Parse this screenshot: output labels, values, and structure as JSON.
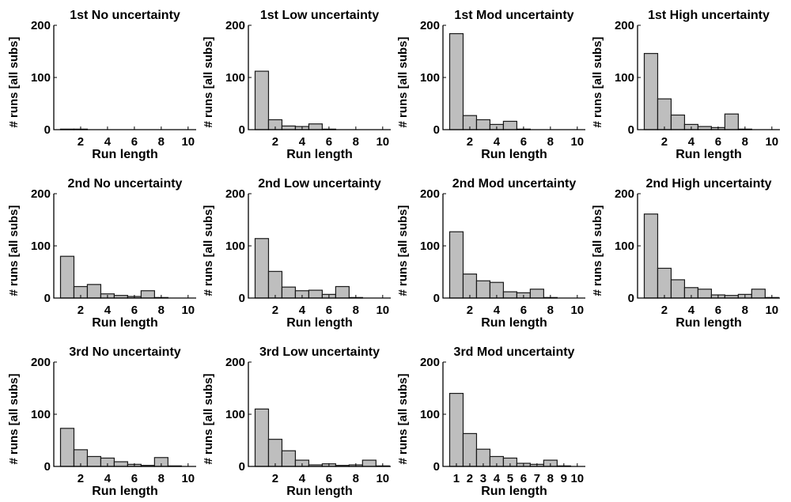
{
  "figure": {
    "background": "#ffffff",
    "bar_fill": "#bebebe",
    "bar_stroke": "#1a1a1a"
  },
  "chart_data": [
    {
      "type": "bar",
      "title": "1st No uncertainty",
      "xlabel": "Run length",
      "ylabel": "# runs [all subs]",
      "xlim": [
        0,
        10.6
      ],
      "ylim": [
        0,
        200
      ],
      "xticks": [
        2,
        4,
        6,
        8,
        10
      ],
      "yticks": [
        0,
        100,
        200
      ],
      "categories": [
        1,
        2,
        3,
        4,
        5,
        6,
        7,
        8,
        9,
        10
      ],
      "values": [
        1,
        1,
        0,
        0,
        0,
        0,
        0,
        0,
        0,
        0
      ]
    },
    {
      "type": "bar",
      "title": "1st Low uncertainty",
      "xlabel": "Run length",
      "ylabel": "# runs [all subs]",
      "xlim": [
        0,
        10.6
      ],
      "ylim": [
        0,
        200
      ],
      "xticks": [
        2,
        4,
        6,
        8,
        10
      ],
      "yticks": [
        0,
        100,
        200
      ],
      "categories": [
        1,
        2,
        3,
        4,
        5,
        6,
        7,
        8,
        9,
        10
      ],
      "values": [
        112,
        19,
        7,
        6,
        11,
        1,
        0,
        0,
        0,
        0
      ]
    },
    {
      "type": "bar",
      "title": "1st Mod uncertainty",
      "xlabel": "Run length",
      "ylabel": "# runs [all subs]",
      "xlim": [
        0,
        10.6
      ],
      "ylim": [
        0,
        200
      ],
      "xticks": [
        2,
        4,
        6,
        8,
        10
      ],
      "yticks": [
        0,
        100,
        200
      ],
      "categories": [
        1,
        2,
        3,
        4,
        5,
        6,
        7,
        8,
        9,
        10
      ],
      "values": [
        184,
        27,
        19,
        10,
        16,
        1,
        0,
        0,
        0,
        0
      ]
    },
    {
      "type": "bar",
      "title": "1st High uncertainty",
      "xlabel": "Run length",
      "ylabel": "# runs [all subs]",
      "xlim": [
        0,
        10.6
      ],
      "ylim": [
        0,
        200
      ],
      "xticks": [
        2,
        4,
        6,
        8,
        10
      ],
      "yticks": [
        0,
        100,
        200
      ],
      "categories": [
        1,
        2,
        3,
        4,
        5,
        6,
        7,
        8,
        9,
        10
      ],
      "values": [
        146,
        59,
        28,
        10,
        6,
        4,
        30,
        1,
        0,
        0
      ]
    },
    {
      "type": "bar",
      "title": "2nd No uncertainty",
      "xlabel": "Run length",
      "ylabel": "# runs [all subs]",
      "xlim": [
        0,
        10.6
      ],
      "ylim": [
        0,
        200
      ],
      "xticks": [
        2,
        4,
        6,
        8,
        10
      ],
      "yticks": [
        0,
        100,
        200
      ],
      "categories": [
        1,
        2,
        3,
        4,
        5,
        6,
        7,
        8,
        9,
        10
      ],
      "values": [
        80,
        22,
        26,
        8,
        5,
        3,
        14,
        1,
        0,
        0
      ]
    },
    {
      "type": "bar",
      "title": "2nd Low uncertainty",
      "xlabel": "Run length",
      "ylabel": "# runs [all subs]",
      "xlim": [
        0,
        10.6
      ],
      "ylim": [
        0,
        200
      ],
      "xticks": [
        2,
        4,
        6,
        8,
        10
      ],
      "yticks": [
        0,
        100,
        200
      ],
      "categories": [
        1,
        2,
        3,
        4,
        5,
        6,
        7,
        8,
        9,
        10
      ],
      "values": [
        114,
        51,
        21,
        14,
        15,
        7,
        22,
        1,
        0,
        0
      ]
    },
    {
      "type": "bar",
      "title": "2nd Mod uncertainty",
      "xlabel": "Run length",
      "ylabel": "# runs [all subs]",
      "xlim": [
        0,
        10.6
      ],
      "ylim": [
        0,
        200
      ],
      "xticks": [
        2,
        4,
        6,
        8,
        10
      ],
      "yticks": [
        0,
        100,
        200
      ],
      "categories": [
        1,
        2,
        3,
        4,
        5,
        6,
        7,
        8,
        9,
        10
      ],
      "values": [
        127,
        46,
        33,
        30,
        12,
        10,
        17,
        1,
        0,
        0
      ]
    },
    {
      "type": "bar",
      "title": "2nd High uncertainty",
      "xlabel": "Run length",
      "ylabel": "# runs [all subs]",
      "xlim": [
        0,
        10.6
      ],
      "ylim": [
        0,
        200
      ],
      "xticks": [
        2,
        4,
        6,
        8,
        10
      ],
      "yticks": [
        0,
        100,
        200
      ],
      "categories": [
        1,
        2,
        3,
        4,
        5,
        6,
        7,
        8,
        9,
        10
      ],
      "values": [
        161,
        57,
        35,
        20,
        17,
        6,
        5,
        7,
        17,
        1
      ]
    },
    {
      "type": "bar",
      "title": "3rd No uncertainty",
      "xlabel": "Run length",
      "ylabel": "# runs [all subs]",
      "xlim": [
        0,
        10.6
      ],
      "ylim": [
        0,
        200
      ],
      "xticks": [
        2,
        4,
        6,
        8,
        10
      ],
      "yticks": [
        0,
        100,
        200
      ],
      "categories": [
        1,
        2,
        3,
        4,
        5,
        6,
        7,
        8,
        9,
        10
      ],
      "values": [
        73,
        32,
        19,
        16,
        9,
        4,
        2,
        17,
        1,
        0
      ]
    },
    {
      "type": "bar",
      "title": "3rd Low uncertainty",
      "xlabel": "Run length",
      "ylabel": "# runs [all subs]",
      "xlim": [
        0,
        10.6
      ],
      "ylim": [
        0,
        200
      ],
      "xticks": [
        2,
        4,
        6,
        8,
        10
      ],
      "yticks": [
        0,
        100,
        200
      ],
      "categories": [
        1,
        2,
        3,
        4,
        5,
        6,
        7,
        8,
        9,
        10
      ],
      "values": [
        110,
        52,
        30,
        12,
        3,
        5,
        2,
        3,
        12,
        1
      ]
    },
    {
      "type": "bar",
      "title": "3rd Mod uncertainty",
      "xlabel": "Run length",
      "ylabel": "# runs [all subs]",
      "xlim": [
        0,
        10.6
      ],
      "ylim": [
        0,
        200
      ],
      "xticks": [
        1,
        2,
        3,
        4,
        5,
        6,
        7,
        8,
        9,
        10
      ],
      "yticks": [
        0,
        100,
        200
      ],
      "categories": [
        1,
        2,
        3,
        4,
        5,
        6,
        7,
        8,
        9,
        10
      ],
      "values": [
        140,
        63,
        33,
        19,
        16,
        6,
        4,
        12,
        1,
        0
      ]
    }
  ]
}
